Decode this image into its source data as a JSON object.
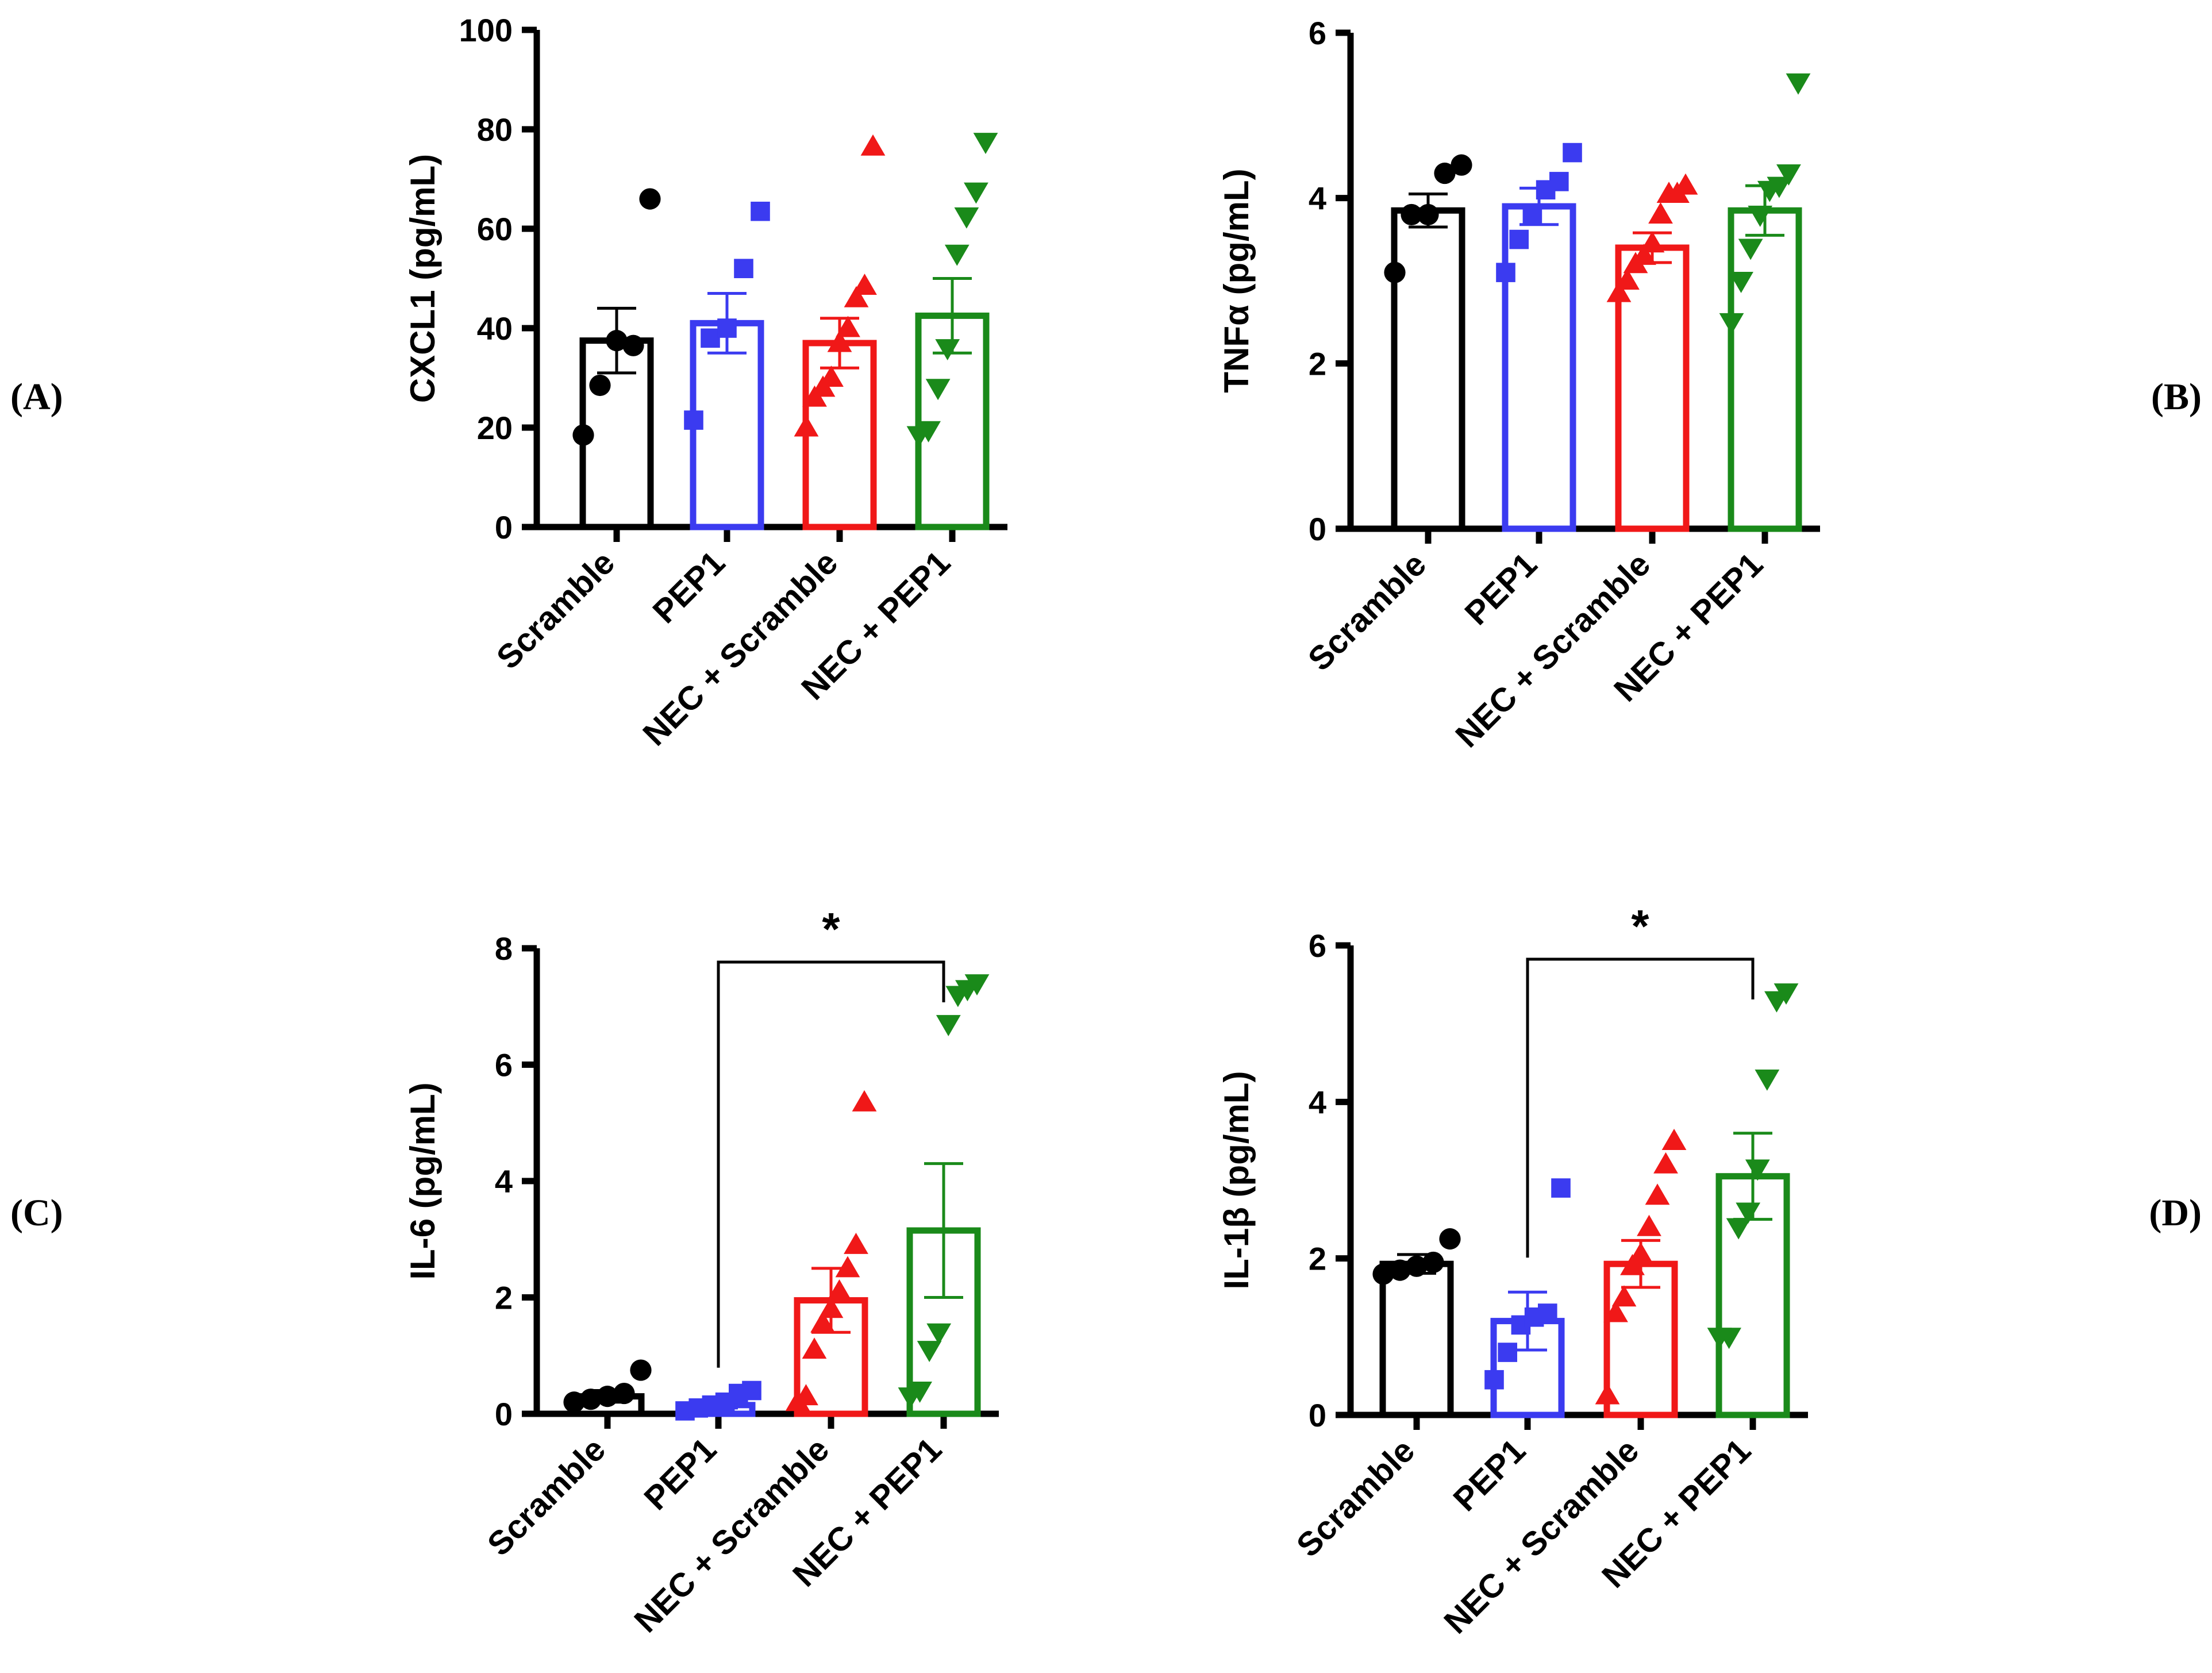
{
  "chart_data": [
    {
      "panel": "(A)",
      "type": "bar",
      "ylabel": "CXCL1 (pg/mL)",
      "ylim": [
        0,
        100
      ],
      "yticks": [
        0,
        20,
        40,
        60,
        80,
        100
      ],
      "categories": [
        "Scramble",
        "PEP1",
        "NEC + Scramble",
        "NEC + PEP1"
      ],
      "colors": [
        "#000000",
        "#3b3bf0",
        "#f01818",
        "#1a8a1a"
      ],
      "markers": [
        "circle",
        "square",
        "triangle-up",
        "triangle-down"
      ],
      "means": [
        37.5,
        41,
        37,
        42.5
      ],
      "sem": [
        6.5,
        6,
        5,
        7.5
      ],
      "points": [
        [
          18.5,
          28.5,
          37.5,
          36.5,
          66
        ],
        [
          21.5,
          38,
          40,
          52,
          63.5
        ],
        [
          20,
          26,
          28,
          30,
          37,
          40,
          46,
          48.5,
          76.5
        ],
        [
          18.5,
          19.5,
          28,
          36,
          55,
          62.5,
          67.5,
          77.5
        ]
      ],
      "significance": null
    },
    {
      "panel": "(B)",
      "type": "bar",
      "ylabel": "TNFα (pg/mL)",
      "ylim": [
        0,
        6
      ],
      "yticks": [
        0,
        2,
        4,
        6
      ],
      "categories": [
        "Scramble",
        "PEP1",
        "NEC + Scramble",
        "NEC + PEP1"
      ],
      "colors": [
        "#000000",
        "#3b3bf0",
        "#f01818",
        "#1a8a1a"
      ],
      "markers": [
        "circle",
        "square",
        "triangle-up",
        "triangle-down"
      ],
      "means": [
        3.85,
        3.9,
        3.4,
        3.85
      ],
      "sem": [
        0.2,
        0.22,
        0.18,
        0.3
      ],
      "points": [
        [
          3.1,
          3.8,
          3.8,
          4.3,
          4.4
        ],
        [
          3.1,
          3.5,
          3.8,
          4.1,
          4.2,
          4.55
        ],
        [
          2.85,
          3.0,
          3.2,
          3.3,
          3.45,
          3.8,
          4.05,
          4.05,
          4.15
        ],
        [
          2.5,
          3.0,
          3.4,
          3.8,
          4.1,
          4.15,
          4.3,
          5.4
        ]
      ],
      "significance": null
    },
    {
      "panel": "(C)",
      "type": "bar",
      "ylabel": "IL-6 (pg/mL)",
      "ylim": [
        0,
        8
      ],
      "yticks": [
        0,
        2,
        4,
        6,
        8
      ],
      "categories": [
        "Scramble",
        "PEP1",
        "NEC + Scramble",
        "NEC + PEP1"
      ],
      "colors": [
        "#000000",
        "#3b3bf0",
        "#f01818",
        "#1a8a1a"
      ],
      "markers": [
        "circle",
        "square",
        "triangle-up",
        "triangle-down"
      ],
      "means": [
        0.3,
        0.15,
        1.95,
        3.15
      ],
      "sem": [
        0.1,
        0.05,
        0.55,
        1.15
      ],
      "points": [
        [
          0.2,
          0.25,
          0.3,
          0.35,
          0.75
        ],
        [
          0.05,
          0.1,
          0.15,
          0.2,
          0.35,
          0.4
        ],
        [
          0.2,
          0.3,
          1.1,
          1.55,
          1.8,
          2.1,
          2.5,
          2.9,
          5.35
        ],
        [
          0.3,
          0.4,
          1.1,
          1.4,
          6.7,
          7.2,
          7.3,
          7.4
        ]
      ],
      "significance": {
        "from": 1,
        "to": 3,
        "label": "*"
      }
    },
    {
      "panel": "(D)",
      "type": "bar",
      "ylabel": "IL-1β (pg/mL)",
      "ylim": [
        0,
        6
      ],
      "yticks": [
        0,
        2,
        4,
        6
      ],
      "categories": [
        "Scramble",
        "PEP1",
        "NEC + Scramble",
        "NEC + PEP1"
      ],
      "colors": [
        "#000000",
        "#3b3bf0",
        "#f01818",
        "#1a8a1a"
      ],
      "markers": [
        "circle",
        "square",
        "triangle-up",
        "triangle-down"
      ],
      "means": [
        1.93,
        1.2,
        1.93,
        3.05
      ],
      "sem": [
        0.12,
        0.37,
        0.3,
        0.55
      ],
      "points": [
        [
          1.8,
          1.85,
          1.9,
          1.95,
          2.25
        ],
        [
          0.45,
          0.8,
          1.15,
          1.25,
          1.3,
          2.9
        ],
        [
          0.25,
          1.3,
          1.5,
          1.9,
          2.05,
          2.4,
          2.8,
          3.2,
          3.5
        ],
        [
          1.0,
          1.0,
          2.4,
          2.6,
          3.15,
          4.3,
          5.3,
          5.4
        ]
      ],
      "significance": {
        "from": 1,
        "to": 3,
        "label": "*"
      }
    }
  ]
}
